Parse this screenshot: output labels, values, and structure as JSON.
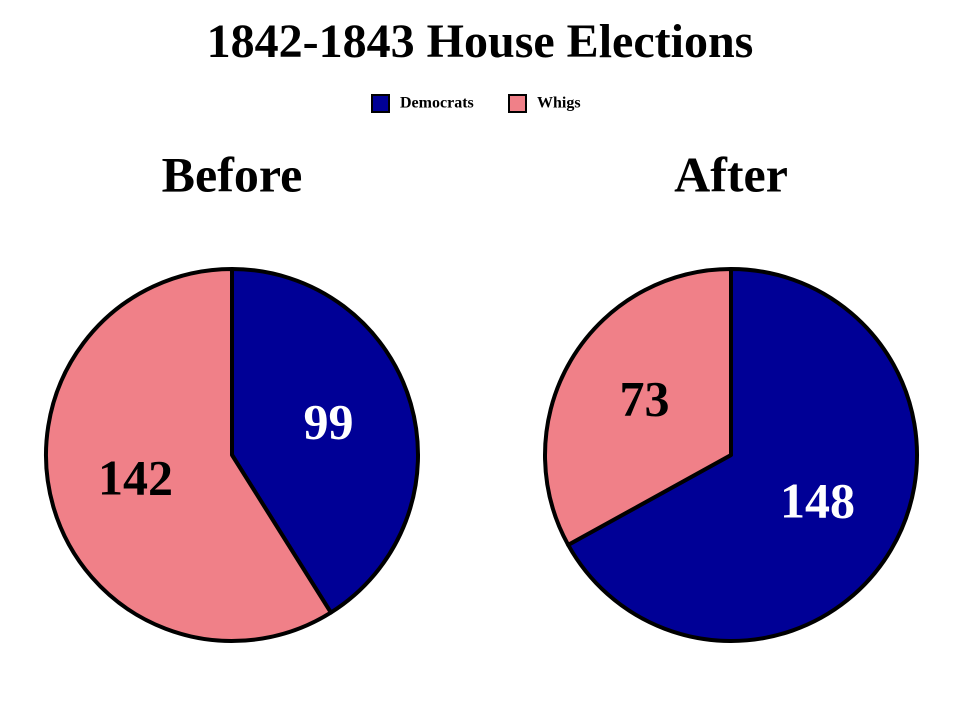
{
  "title": "1842-1843 House Elections",
  "chart_data": [
    {
      "type": "pie",
      "title": "Before",
      "categories": [
        "Democrats",
        "Whigs"
      ],
      "values": [
        99,
        142
      ],
      "colors": [
        "#000096",
        "#f08088"
      ],
      "label_colors": [
        "#ffffff",
        "#000000"
      ]
    },
    {
      "type": "pie",
      "title": "After",
      "categories": [
        "Democrats",
        "Whigs"
      ],
      "values": [
        148,
        73
      ],
      "colors": [
        "#000096",
        "#f08088"
      ],
      "label_colors": [
        "#ffffff",
        "#000000"
      ]
    }
  ]
}
